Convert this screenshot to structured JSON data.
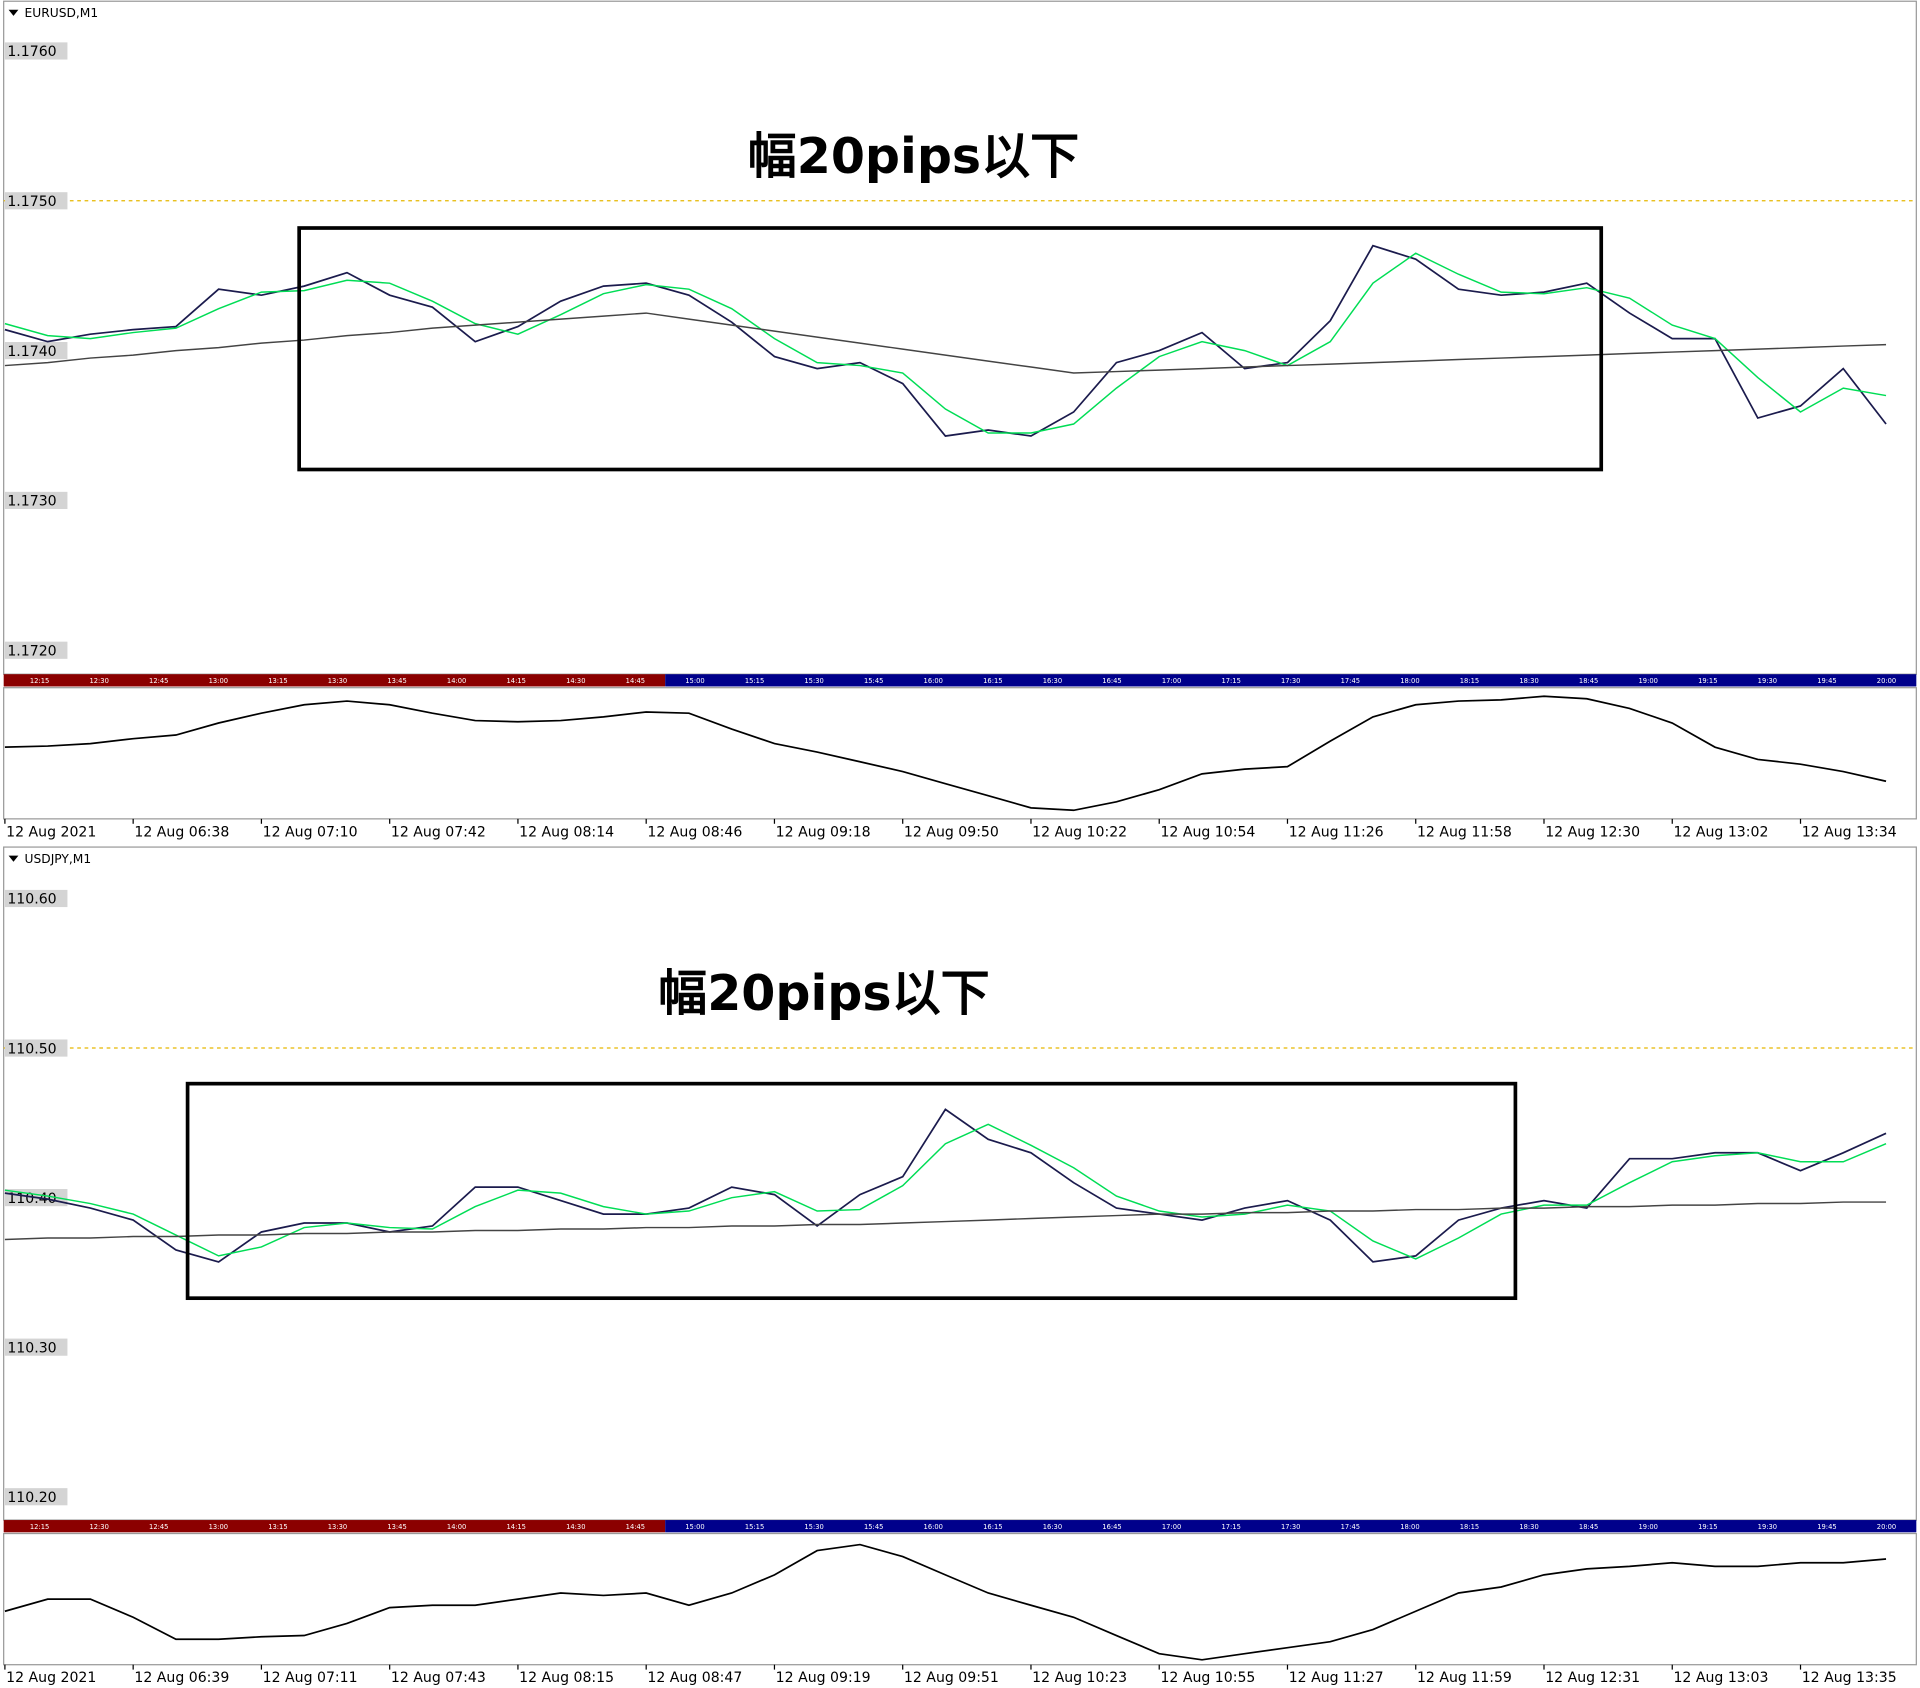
{
  "chart_data": [
    {
      "type": "line",
      "title": "EURUSD,M1",
      "annotation": "幅20pips以下",
      "categories": [
        "12 Aug 2021",
        null,
        null,
        "12 Aug 06:38",
        null,
        null,
        "12 Aug 07:10",
        null,
        null,
        "12 Aug 07:42",
        null,
        null,
        "12 Aug 08:14",
        null,
        null,
        "12 Aug 08:46",
        null,
        null,
        "12 Aug 09:18",
        null,
        null,
        "12 Aug 09:50",
        null,
        null,
        "12 Aug 10:22",
        null,
        null,
        "12 Aug 10:54",
        null,
        null,
        "12 Aug 11:26",
        null,
        null,
        "12 Aug 11:58",
        null,
        null,
        "12 Aug 12:30",
        null,
        null,
        "12 Aug 13:02",
        null,
        null,
        "12 Aug 13:34",
        null,
        null
      ],
      "series": [
        {
          "color": "#1b1b4d",
          "values": [
            1.17414,
            1.17406,
            1.17411,
            1.17414,
            1.17416,
            1.17441,
            1.17437,
            1.17443,
            1.17452,
            1.17437,
            1.17429,
            1.17406,
            1.17416,
            1.17433,
            1.17443,
            1.17445,
            1.17437,
            1.17419,
            1.17396,
            1.17388,
            1.17392,
            1.17378,
            1.17343,
            1.17347,
            1.17343,
            1.17359,
            1.17392,
            1.174,
            1.17412,
            1.17388,
            1.17392,
            1.1742,
            1.1747,
            1.17461,
            1.17441,
            1.17437,
            1.17439,
            1.17445,
            1.17425,
            1.17408,
            1.17408,
            1.17355,
            1.17363,
            1.17388,
            1.17351
          ]
        },
        {
          "color": "#00dd55",
          "values": [
            1.17418,
            1.1741,
            1.17408,
            1.17412,
            1.17415,
            1.17428,
            1.17439,
            1.1744,
            1.17447,
            1.17445,
            1.17433,
            1.17418,
            1.17411,
            1.17424,
            1.17438,
            1.17444,
            1.17441,
            1.17428,
            1.17408,
            1.17392,
            1.1739,
            1.17385,
            1.17361,
            1.17345,
            1.17345,
            1.17351,
            1.17375,
            1.17396,
            1.17406,
            1.174,
            1.1739,
            1.17406,
            1.17445,
            1.17465,
            1.17451,
            1.17439,
            1.17438,
            1.17442,
            1.17435,
            1.17417,
            1.17408,
            1.17382,
            1.17359,
            1.17375,
            1.1737
          ]
        },
        {
          "color": "#444444",
          "values": [
            1.1739,
            1.17392,
            1.17395,
            1.17397,
            1.174,
            1.17402,
            1.17405,
            1.17407,
            1.1741,
            1.17412,
            1.17415,
            1.17417,
            1.17419,
            1.17421,
            1.17423,
            1.17425,
            1.17421,
            1.17417,
            1.17413,
            1.17409,
            1.17405,
            1.17401,
            1.17397,
            1.17393,
            1.17389,
            1.17385,
            1.17386,
            1.17387,
            1.17388,
            1.17389,
            1.1739,
            1.17391,
            1.17392,
            1.17393,
            1.17394,
            1.17395,
            1.17396,
            1.17397,
            1.17398,
            1.17399,
            1.174,
            1.17401,
            1.17402,
            1.17403,
            1.17404
          ]
        }
      ],
      "ylim": [
        1.17184,
        1.17634
      ],
      "yticks": [
        {
          "value": 1.176,
          "label": "1.1760"
        },
        {
          "value": 1.175,
          "label": "1.1750"
        },
        {
          "value": 1.174,
          "label": "1.1740"
        },
        {
          "value": 1.173,
          "label": "1.1730"
        },
        {
          "value": 1.172,
          "label": "1.1720"
        }
      ],
      "grid": false,
      "level_line": {
        "value": 1.175,
        "color": "#e6b800"
      },
      "session_strip": [
        {
          "color": "#8b0000",
          "labels": [
            "12:15",
            "12:30",
            "12:45",
            "13:00",
            "13:15",
            "13:30",
            "13:45",
            "14:00",
            "14:15",
            "14:30",
            "14:45"
          ]
        },
        {
          "color": "#00008b",
          "labels": [
            "15:00",
            "15:15",
            "15:30",
            "15:45",
            "16:00",
            "16:15",
            "16:30",
            "16:45",
            "17:00",
            "17:15",
            "17:30",
            "17:45",
            "18:00",
            "18:15",
            "18:30",
            "18:45",
            "19:00",
            "19:15",
            "19:30",
            "19:45",
            "20:00"
          ]
        }
      ],
      "indicator": {
        "color": "#000000",
        "ylim": [
          0,
          100
        ],
        "values": [
          55,
          56,
          58,
          62,
          65,
          75,
          83,
          90,
          93,
          90,
          83,
          77,
          76,
          77,
          80,
          84,
          83,
          70,
          58,
          51,
          43,
          35,
          25,
          15,
          5,
          3,
          10,
          20,
          33,
          37,
          39,
          60,
          80,
          90,
          93,
          94,
          97,
          95,
          87,
          75,
          55,
          45,
          41,
          35,
          27
        ]
      }
    },
    {
      "type": "line",
      "title": "USDJPY,M1",
      "annotation": "幅20pips以下",
      "categories": [
        "12 Aug 2021",
        null,
        null,
        "12 Aug 06:39",
        null,
        null,
        "12 Aug 07:11",
        null,
        null,
        "12 Aug 07:43",
        null,
        null,
        "12 Aug 08:15",
        null,
        null,
        "12 Aug 08:47",
        null,
        null,
        "12 Aug 09:19",
        null,
        null,
        "12 Aug 09:51",
        null,
        null,
        "12 Aug 10:23",
        null,
        null,
        "12 Aug 10:55",
        null,
        null,
        "12 Aug 11:27",
        null,
        null,
        "12 Aug 11:59",
        null,
        null,
        "12 Aug 12:31",
        null,
        null,
        "12 Aug 13:03",
        null,
        null,
        "12 Aug 13:35",
        null,
        null
      ],
      "series": [
        {
          "color": "#1b1b4d",
          "values": [
            110.403,
            110.399,
            110.393,
            110.385,
            110.365,
            110.357,
            110.377,
            110.383,
            110.383,
            110.377,
            110.381,
            110.407,
            110.407,
            110.398,
            110.389,
            110.389,
            110.393,
            110.407,
            110.402,
            110.381,
            110.402,
            110.414,
            110.459,
            110.439,
            110.43,
            110.41,
            110.393,
            110.389,
            110.385,
            110.393,
            110.398,
            110.385,
            110.357,
            110.361,
            110.385,
            110.393,
            110.398,
            110.393,
            110.426,
            110.426,
            110.43,
            110.43,
            110.418,
            110.43,
            110.443
          ]
        },
        {
          "color": "#00dd55",
          "values": [
            110.405,
            110.401,
            110.396,
            110.389,
            110.375,
            110.361,
            110.367,
            110.38,
            110.383,
            110.38,
            110.379,
            110.394,
            110.405,
            110.403,
            110.394,
            110.389,
            110.391,
            110.4,
            110.404,
            110.391,
            110.392,
            110.408,
            110.436,
            110.449,
            110.435,
            110.42,
            110.401,
            110.391,
            110.387,
            110.389,
            110.395,
            110.391,
            110.371,
            110.359,
            110.373,
            110.389,
            110.395,
            110.395,
            110.41,
            110.424,
            110.428,
            110.43,
            110.424,
            110.424,
            110.436
          ]
        },
        {
          "color": "#444444",
          "values": [
            110.372,
            110.373,
            110.373,
            110.374,
            110.374,
            110.375,
            110.375,
            110.376,
            110.376,
            110.377,
            110.377,
            110.378,
            110.378,
            110.379,
            110.379,
            110.38,
            110.38,
            110.381,
            110.381,
            110.382,
            110.382,
            110.383,
            110.384,
            110.385,
            110.386,
            110.387,
            110.388,
            110.389,
            110.389,
            110.39,
            110.39,
            110.391,
            110.391,
            110.392,
            110.392,
            110.393,
            110.393,
            110.394,
            110.394,
            110.395,
            110.395,
            110.396,
            110.396,
            110.397,
            110.397
          ]
        }
      ],
      "ylim": [
        110.1844,
        110.6352
      ],
      "yticks": [
        {
          "value": 110.6,
          "label": "110.60"
        },
        {
          "value": 110.5,
          "label": "110.50"
        },
        {
          "value": 110.4,
          "label": "110.40"
        },
        {
          "value": 110.3,
          "label": "110.30"
        },
        {
          "value": 110.2,
          "label": "110.20"
        }
      ],
      "grid": false,
      "level_line": {
        "value": 110.5,
        "color": "#e6b800"
      },
      "session_strip": [
        {
          "color": "#8b0000",
          "labels": [
            "12:15",
            "12:30",
            "12:45",
            "13:00",
            "13:15",
            "13:30",
            "13:45",
            "14:00",
            "14:15",
            "14:30",
            "14:45"
          ]
        },
        {
          "color": "#00008b",
          "labels": [
            "15:00",
            "15:15",
            "15:30",
            "15:45",
            "16:00",
            "16:15",
            "16:30",
            "16:45",
            "17:00",
            "17:15",
            "17:30",
            "17:45",
            "18:00",
            "18:15",
            "18:30",
            "18:45",
            "19:00",
            "19:15",
            "19:30",
            "19:45",
            "20:00"
          ]
        }
      ],
      "indicator": {
        "color": "#000000",
        "ylim": [
          0,
          100
        ],
        "values": [
          40,
          50,
          50,
          35,
          17,
          17,
          19,
          20,
          30,
          43,
          45,
          45,
          50,
          55,
          53,
          55,
          45,
          55,
          70,
          90,
          95,
          85,
          70,
          55,
          45,
          35,
          20,
          5,
          0,
          5,
          10,
          15,
          25,
          40,
          55,
          60,
          70,
          75,
          77,
          80,
          77,
          77,
          80,
          80,
          83
        ]
      }
    }
  ]
}
